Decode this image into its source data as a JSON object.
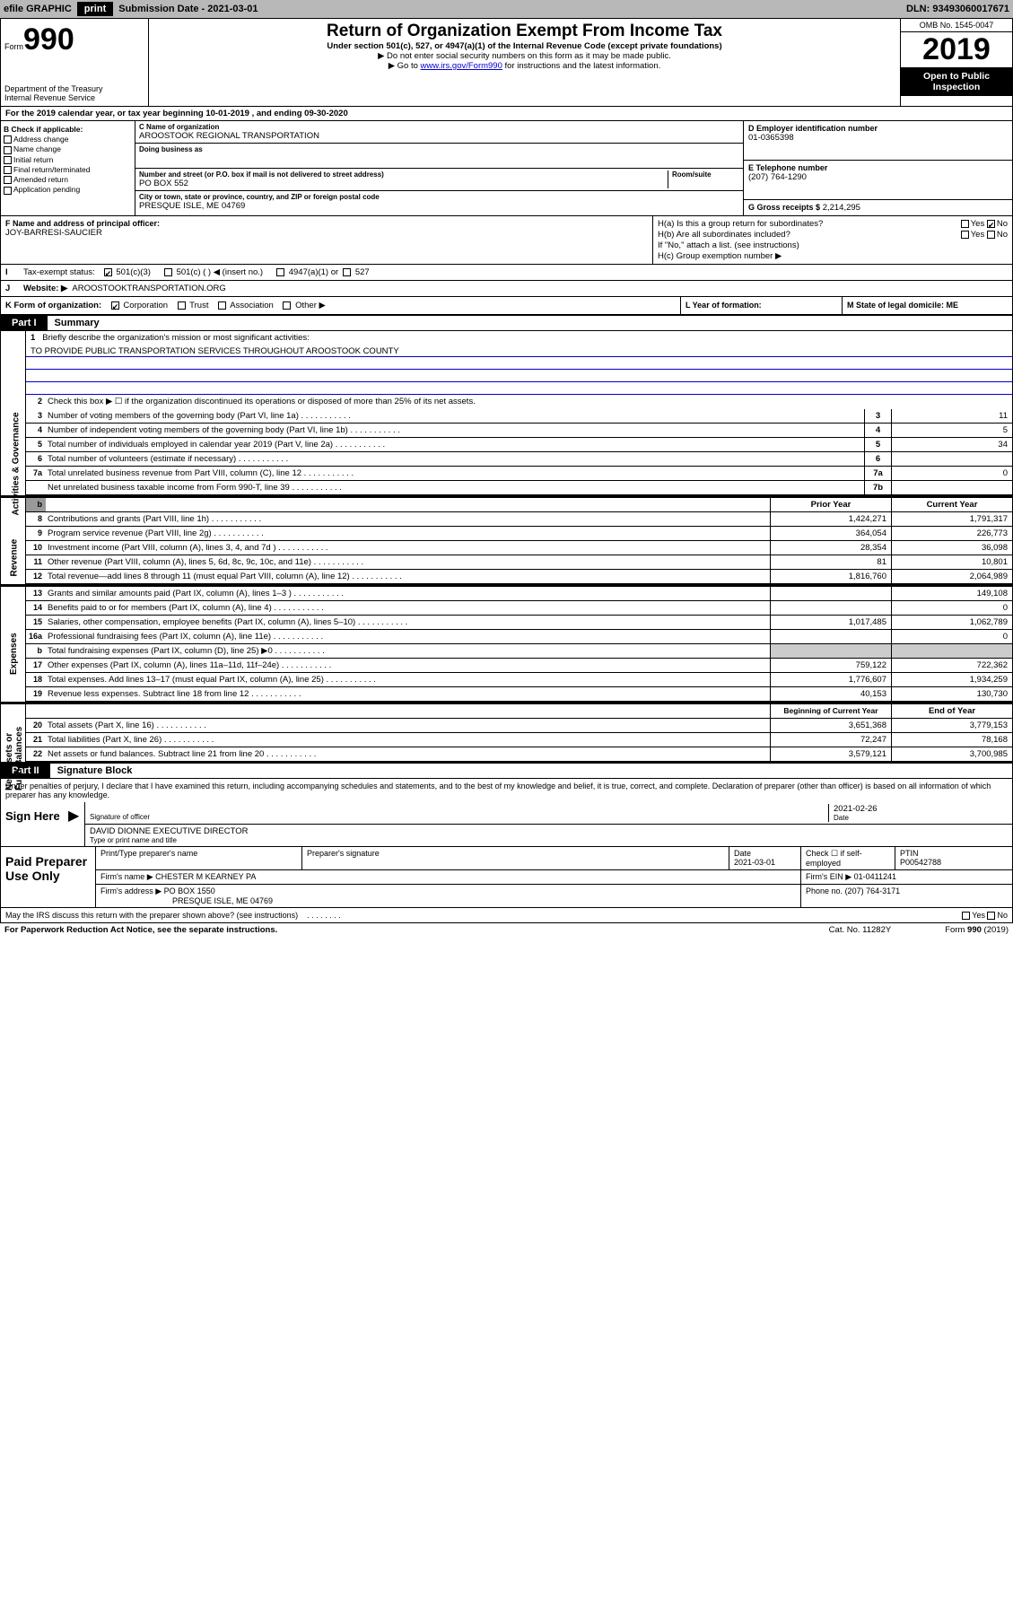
{
  "topbar": {
    "efile": "efile GRAPHIC",
    "print": "print",
    "submission": "Submission Date - 2021-03-01",
    "dln": "DLN: 93493060017671"
  },
  "header": {
    "form_label": "Form",
    "form_num": "990",
    "dept": "Department of the Treasury\nInternal Revenue Service",
    "title": "Return of Organization Exempt From Income Tax",
    "sub1": "Under section 501(c), 527, or 4947(a)(1) of the Internal Revenue Code (except private foundations)",
    "sub2": "▶ Do not enter social security numbers on this form as it may be made public.",
    "sub3": "▶ Go to ",
    "link": "www.irs.gov/Form990",
    "sub3b": " for instructions and the latest information.",
    "omb": "OMB No. 1545-0047",
    "year": "2019",
    "open": "Open to Public Inspection"
  },
  "period": {
    "text": "For the 2019 calendar year, or tax year beginning 10-01-2019     , and ending 09-30-2020"
  },
  "sectionB": {
    "title": "B Check if applicable:",
    "items": [
      "Address change",
      "Name change",
      "Initial return",
      "Final return/terminated",
      "Amended return",
      "Application pending"
    ]
  },
  "sectionC": {
    "name_label": "C Name of organization",
    "name": "AROOSTOOK REGIONAL TRANSPORTATION",
    "dba_label": "Doing business as",
    "addr_label": "Number and street (or P.O. box if mail is not delivered to street address)",
    "room_label": "Room/suite",
    "addr": "PO BOX 552",
    "city_label": "City or town, state or province, country, and ZIP or foreign postal code",
    "city": "PRESQUE ISLE, ME  04769"
  },
  "sectionD": {
    "ein_label": "D Employer identification number",
    "ein": "01-0365398",
    "phone_label": "E Telephone number",
    "phone": "(207) 764-1290",
    "gross_label": "G Gross receipts $",
    "gross": "2,214,295"
  },
  "sectionF": {
    "label": "F  Name and address of principal officer:",
    "name": "JOY-BARRESI-SAUCIER"
  },
  "sectionH": {
    "ha": "H(a)  Is this a group return for subordinates?",
    "hb": "H(b)  Are all subordinates included?",
    "hb_note": "If \"No,\" attach a list. (see instructions)",
    "hc": "H(c)  Group exemption number ▶"
  },
  "sectionI": {
    "label": "Tax-exempt status:",
    "opt1": "501(c)(3)",
    "opt2": "501(c) (   ) ◀ (insert no.)",
    "opt3": "4947(a)(1) or",
    "opt4": "527"
  },
  "sectionJ": {
    "label": "Website: ▶",
    "value": "AROOSTOOKTRANSPORTATION.ORG"
  },
  "sectionK": {
    "label": "K Form of organization:",
    "opts": [
      "Corporation",
      "Trust",
      "Association",
      "Other ▶"
    ],
    "l_label": "L Year of formation:",
    "m_label": "M State of legal domicile: ME"
  },
  "part1": {
    "label": "Part I",
    "title": "Summary"
  },
  "summary": {
    "line1": "Briefly describe the organization's mission or most significant activities:",
    "mission": "TO PROVIDE PUBLIC TRANSPORTATION SERVICES THROUGHOUT AROOSTOOK COUNTY",
    "line2": "Check this box ▶ ☐  if the organization discontinued its operations or disposed of more than 25% of its net assets.",
    "lines": [
      {
        "n": "3",
        "t": "Number of voting members of the governing body (Part VI, line 1a)",
        "c": "3",
        "v": "11"
      },
      {
        "n": "4",
        "t": "Number of independent voting members of the governing body (Part VI, line 1b)",
        "c": "4",
        "v": "5"
      },
      {
        "n": "5",
        "t": "Total number of individuals employed in calendar year 2019 (Part V, line 2a)",
        "c": "5",
        "v": "34"
      },
      {
        "n": "6",
        "t": "Total number of volunteers (estimate if necessary)",
        "c": "6",
        "v": ""
      },
      {
        "n": "7a",
        "t": "Total unrelated business revenue from Part VIII, column (C), line 12",
        "c": "7a",
        "v": "0"
      },
      {
        "n": "",
        "t": "Net unrelated business taxable income from Form 990-T, line 39",
        "c": "7b",
        "v": ""
      }
    ],
    "col_prior": "Prior Year",
    "col_current": "Current Year",
    "revenue": [
      {
        "n": "8",
        "t": "Contributions and grants (Part VIII, line 1h)",
        "p": "1,424,271",
        "c": "1,791,317"
      },
      {
        "n": "9",
        "t": "Program service revenue (Part VIII, line 2g)",
        "p": "364,054",
        "c": "226,773"
      },
      {
        "n": "10",
        "t": "Investment income (Part VIII, column (A), lines 3, 4, and 7d )",
        "p": "28,354",
        "c": "36,098"
      },
      {
        "n": "11",
        "t": "Other revenue (Part VIII, column (A), lines 5, 6d, 8c, 9c, 10c, and 11e)",
        "p": "81",
        "c": "10,801"
      },
      {
        "n": "12",
        "t": "Total revenue—add lines 8 through 11 (must equal Part VIII, column (A), line 12)",
        "p": "1,816,760",
        "c": "2,064,989"
      }
    ],
    "expenses": [
      {
        "n": "13",
        "t": "Grants and similar amounts paid (Part IX, column (A), lines 1–3 )",
        "p": "",
        "c": "149,108"
      },
      {
        "n": "14",
        "t": "Benefits paid to or for members (Part IX, column (A), line 4)",
        "p": "",
        "c": "0"
      },
      {
        "n": "15",
        "t": "Salaries, other compensation, employee benefits (Part IX, column (A), lines 5–10)",
        "p": "1,017,485",
        "c": "1,062,789"
      },
      {
        "n": "16a",
        "t": "Professional fundraising fees (Part IX, column (A), line 11e)",
        "p": "",
        "c": "0"
      },
      {
        "n": "b",
        "t": "Total fundraising expenses (Part IX, column (D), line 25) ▶0",
        "p": "shaded",
        "c": "shaded"
      },
      {
        "n": "17",
        "t": "Other expenses (Part IX, column (A), lines 11a–11d, 11f–24e)",
        "p": "759,122",
        "c": "722,362"
      },
      {
        "n": "18",
        "t": "Total expenses. Add lines 13–17 (must equal Part IX, column (A), line 25)",
        "p": "1,776,607",
        "c": "1,934,259"
      },
      {
        "n": "19",
        "t": "Revenue less expenses. Subtract line 18 from line 12",
        "p": "40,153",
        "c": "130,730"
      }
    ],
    "col_begin": "Beginning of Current Year",
    "col_end": "End of Year",
    "netassets": [
      {
        "n": "20",
        "t": "Total assets (Part X, line 16)",
        "p": "3,651,368",
        "c": "3,779,153"
      },
      {
        "n": "21",
        "t": "Total liabilities (Part X, line 26)",
        "p": "72,247",
        "c": "78,168"
      },
      {
        "n": "22",
        "t": "Net assets or fund balances. Subtract line 21 from line 20",
        "p": "3,579,121",
        "c": "3,700,985"
      }
    ]
  },
  "part2": {
    "label": "Part II",
    "title": "Signature Block"
  },
  "signature": {
    "declaration": "Under penalties of perjury, I declare that I have examined this return, including accompanying schedules and statements, and to the best of my knowledge and belief, it is true, correct, and complete. Declaration of preparer (other than officer) is based on all information of which preparer has any knowledge.",
    "sign_here": "Sign Here",
    "sig_officer": "Signature of officer",
    "date": "2021-02-26",
    "date_label": "Date",
    "officer_name": "DAVID DIONNE  EXECUTIVE DIRECTOR",
    "type_name": "Type or print name and title"
  },
  "paid": {
    "label": "Paid Preparer Use Only",
    "headers": [
      "Print/Type preparer's name",
      "Preparer's signature",
      "Date",
      "",
      "PTIN"
    ],
    "prep_date": "2021-03-01",
    "check_label": "Check ☐ if self-employed",
    "ptin": "P00542788",
    "firm_name_label": "Firm's name    ▶",
    "firm_name": "CHESTER M KEARNEY PA",
    "firm_ein_label": "Firm's EIN ▶",
    "firm_ein": "01-0411241",
    "firm_addr_label": "Firm's address ▶",
    "firm_addr": "PO BOX 1550",
    "firm_city": "PRESQUE ISLE, ME  04769",
    "phone_label": "Phone no.",
    "phone": "(207) 764-3171"
  },
  "footer": {
    "discuss": "May the IRS discuss this return with the preparer shown above? (see instructions)",
    "paperwork": "For Paperwork Reduction Act Notice, see the separate instructions.",
    "catno": "Cat. No. 11282Y",
    "formref": "Form 990 (2019)"
  }
}
